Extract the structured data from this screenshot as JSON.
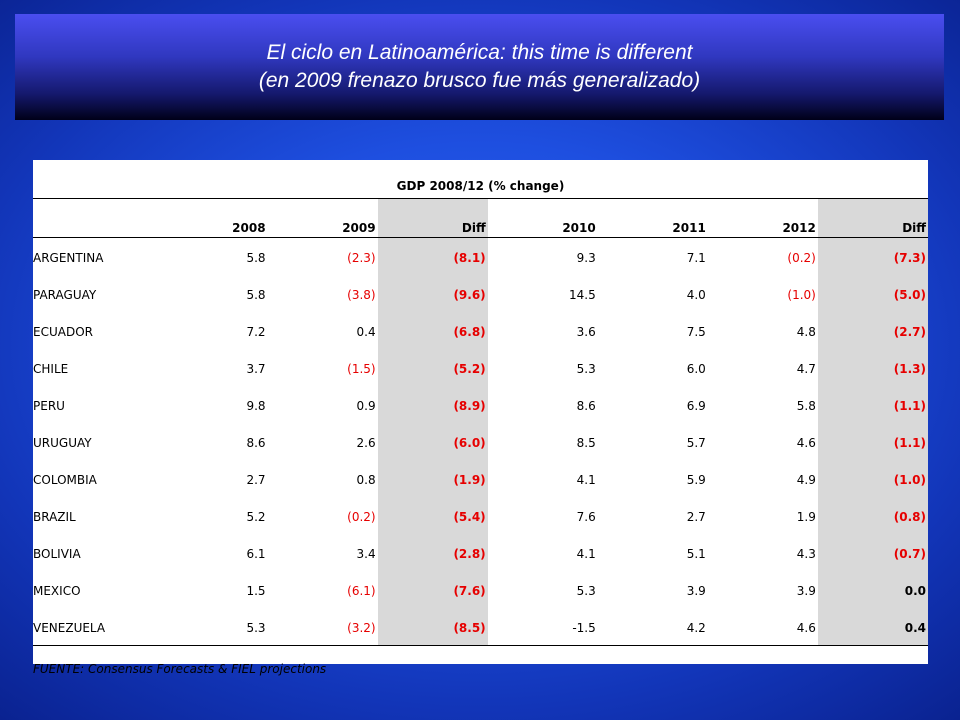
{
  "title": {
    "line1": "El ciclo en Latinoamérica: this time is different",
    "line2": "(en 2009 frenazo brusco fue más generalizado)"
  },
  "table": {
    "caption": "GDP 2008/12 (% change)",
    "headers": [
      "",
      "2008",
      "2009",
      "Diff",
      "2010",
      "2011",
      "2012",
      "Diff"
    ],
    "rows": [
      {
        "country": "ARGENTINA",
        "y2008": "5.8",
        "y2009": "(2.3)",
        "diff1": "(8.1)",
        "y2010": "9.3",
        "y2011": "7.1",
        "y2012": "(0.2)",
        "diff2": "(7.3)"
      },
      {
        "country": "PARAGUAY",
        "y2008": "5.8",
        "y2009": "(3.8)",
        "diff1": "(9.6)",
        "y2010": "14.5",
        "y2011": "4.0",
        "y2012": "(1.0)",
        "diff2": "(5.0)"
      },
      {
        "country": "ECUADOR",
        "y2008": "7.2",
        "y2009": "0.4",
        "diff1": "(6.8)",
        "y2010": "3.6",
        "y2011": "7.5",
        "y2012": "4.8",
        "diff2": "(2.7)"
      },
      {
        "country": "CHILE",
        "y2008": "3.7",
        "y2009": "(1.5)",
        "diff1": "(5.2)",
        "y2010": "5.3",
        "y2011": "6.0",
        "y2012": "4.7",
        "diff2": "(1.3)"
      },
      {
        "country": "PERU",
        "y2008": "9.8",
        "y2009": "0.9",
        "diff1": "(8.9)",
        "y2010": "8.6",
        "y2011": "6.9",
        "y2012": "5.8",
        "diff2": "(1.1)"
      },
      {
        "country": "URUGUAY",
        "y2008": "8.6",
        "y2009": "2.6",
        "diff1": "(6.0)",
        "y2010": "8.5",
        "y2011": "5.7",
        "y2012": "4.6",
        "diff2": "(1.1)"
      },
      {
        "country": "COLOMBIA",
        "y2008": "2.7",
        "y2009": "0.8",
        "diff1": "(1.9)",
        "y2010": "4.1",
        "y2011": "5.9",
        "y2012": "4.9",
        "diff2": "(1.0)"
      },
      {
        "country": "BRAZIL",
        "y2008": "5.2",
        "y2009": "(0.2)",
        "diff1": "(5.4)",
        "y2010": "7.6",
        "y2011": "2.7",
        "y2012": "1.9",
        "diff2": "(0.8)"
      },
      {
        "country": "BOLIVIA",
        "y2008": "6.1",
        "y2009": "3.4",
        "diff1": "(2.8)",
        "y2010": "4.1",
        "y2011": "5.1",
        "y2012": "4.3",
        "diff2": "(0.7)"
      },
      {
        "country": "MEXICO",
        "y2008": "1.5",
        "y2009": "(6.1)",
        "diff1": "(7.6)",
        "y2010": "5.3",
        "y2011": "3.9",
        "y2012": "3.9",
        "diff2": "0.0"
      },
      {
        "country": "VENEZUELA",
        "y2008": "5.3",
        "y2009": "(3.2)",
        "diff1": "(8.5)",
        "y2010": "-1.5",
        "y2011": "4.2",
        "y2012": "4.6",
        "diff2": "0.4"
      }
    ],
    "source": "FUENTE: Consensus Forecasts & FIEL projections"
  },
  "colors": {
    "negative": "#e60000",
    "diff_shade": "#d9d9d9",
    "background": "#1e4fe0"
  }
}
